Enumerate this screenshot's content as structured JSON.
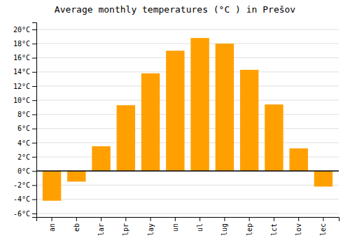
{
  "chart_data": {
    "type": "bar",
    "title": "Average monthly temperatures (°C ) in Prešov",
    "categories": [
      "an",
      "eb",
      "lar",
      "lpr",
      "lay",
      "un",
      "ul",
      "lug",
      "lep",
      "lct",
      "lov",
      "lec"
    ],
    "values": [
      -4.2,
      -1.5,
      3.5,
      9.3,
      13.8,
      17.0,
      18.8,
      18.0,
      14.3,
      9.4,
      3.2,
      -2.2
    ],
    "color": "#FFA000",
    "ylim": [
      -6.5,
      21
    ],
    "yticks": [
      {
        "value": -6,
        "label": "-6°C"
      },
      {
        "value": -4,
        "label": "-4°C"
      },
      {
        "value": -2,
        "label": "-2°C"
      },
      {
        "value": 0,
        "label": "0°C"
      },
      {
        "value": 2,
        "label": "2°C"
      },
      {
        "value": 4,
        "label": "4°C"
      },
      {
        "value": 6,
        "label": "6°C"
      },
      {
        "value": 8,
        "label": "8°C"
      },
      {
        "value": 10,
        "label": "10°C"
      },
      {
        "value": 12,
        "label": "12°C"
      },
      {
        "value": 14,
        "label": "14°C"
      },
      {
        "value": 16,
        "label": "16°C"
      },
      {
        "value": 18,
        "label": "18°C"
      },
      {
        "value": 20,
        "label": "20°C"
      }
    ],
    "grid": true
  }
}
